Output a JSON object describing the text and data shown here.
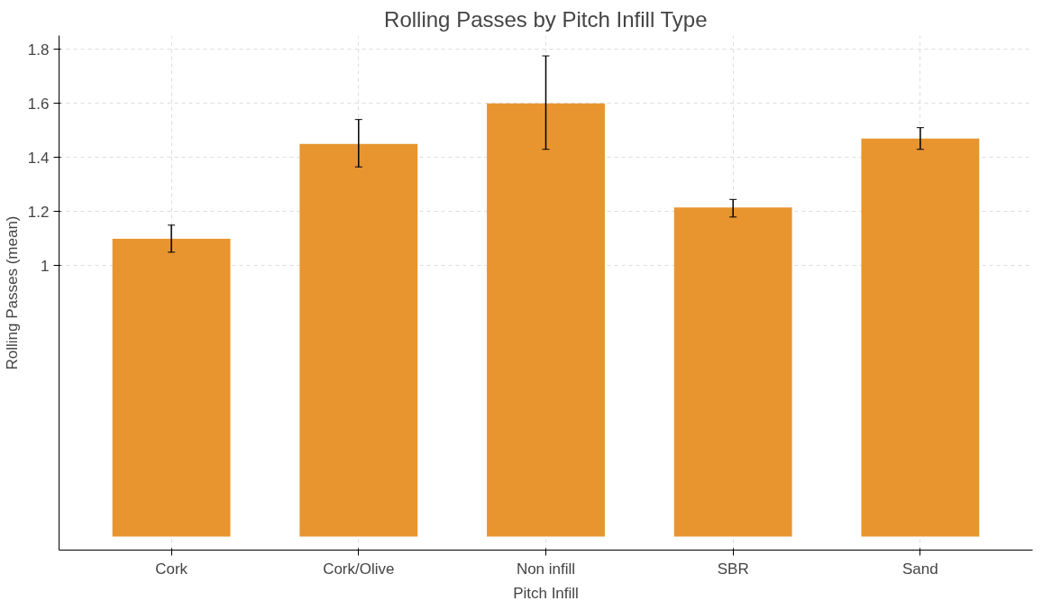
{
  "chart_data": {
    "type": "bar",
    "title": "Rolling Passes by Pitch Infill Type",
    "xlabel": "Pitch Infill",
    "ylabel": "Rolling Passes (mean)",
    "categories": [
      "Cork",
      "Cork/Olive",
      "Non infill",
      "SBR",
      "Sand"
    ],
    "values": [
      1.1,
      1.45,
      1.6,
      1.215,
      1.47
    ],
    "errors": [
      [
        1.05,
        1.15
      ],
      [
        1.365,
        1.54
      ],
      [
        1.43,
        1.775
      ],
      [
        1.18,
        1.245
      ],
      [
        1.43,
        1.51
      ]
    ],
    "color": "#e8952f",
    "ylim": [
      -0.05,
      1.85
    ],
    "yticks": [
      1,
      1.2,
      1.4,
      1.6,
      1.8
    ],
    "grid": true
  }
}
